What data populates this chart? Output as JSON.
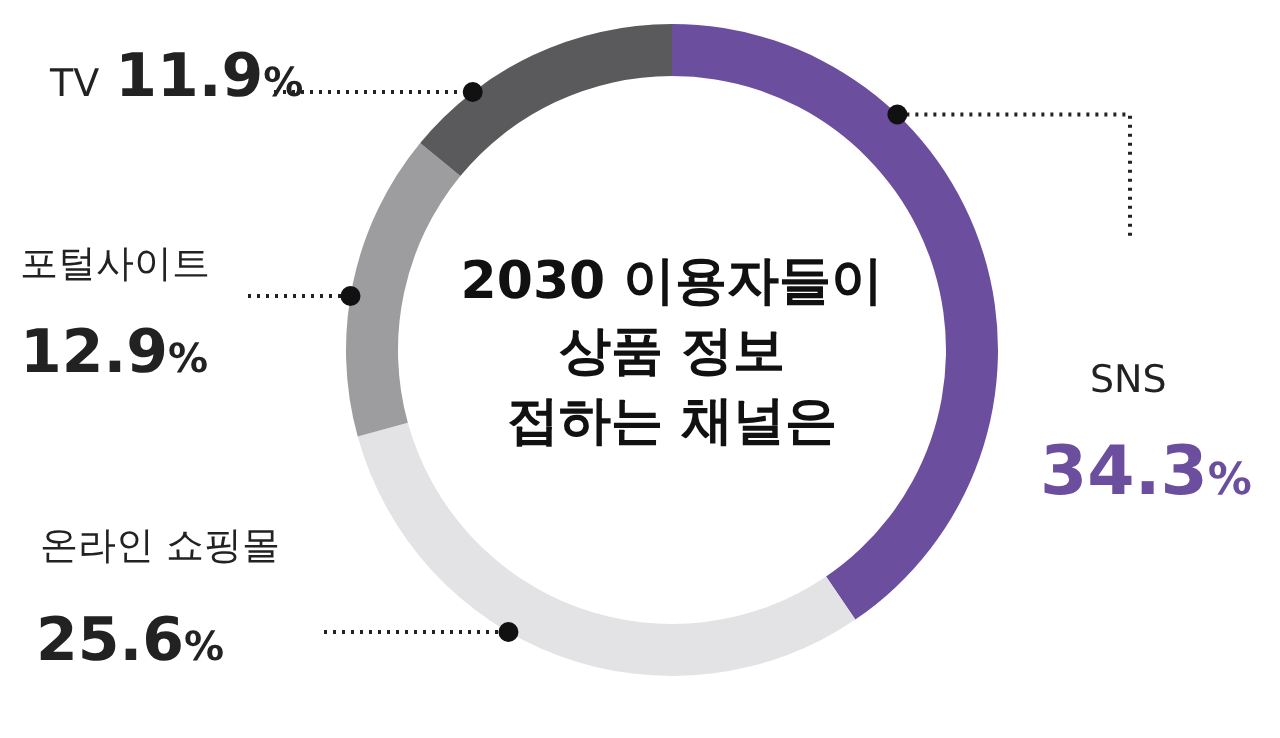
{
  "chart_data": {
    "type": "donut",
    "title": "2030 이용자들이\n상품 정보\n접하는 채널은",
    "categories": [
      "SNS",
      "온라인 쇼핑몰",
      "포털사이트",
      "TV"
    ],
    "values": [
      34.3,
      25.6,
      12.9,
      11.9
    ],
    "value_labels": [
      "34.3%",
      "25.6%",
      "12.9%",
      "11.9%"
    ],
    "colors": [
      "#6b4f9e",
      "#e3e3e5",
      "#9d9d9f",
      "#5a5a5c"
    ],
    "legend": false
  }
}
